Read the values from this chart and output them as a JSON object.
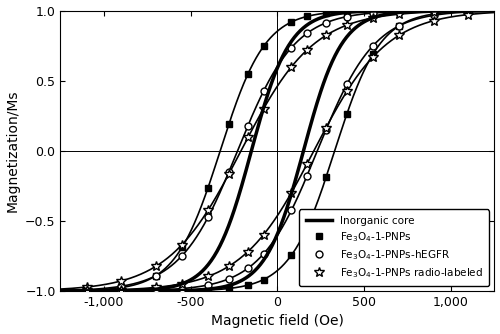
{
  "title": "",
  "xlabel": "Magnetic field (Oe)",
  "ylabel": "Magnetization/Ms",
  "xlim": [
    -1250,
    1250
  ],
  "ylim": [
    -1.0,
    1.0
  ],
  "xticks": [
    -1000,
    -500,
    0,
    500,
    1000
  ],
  "yticks": [
    -1.0,
    -0.5,
    0.0,
    0.5,
    1.0
  ],
  "legend_labels": [
    "Inorganic core",
    "Fe$_3$O$_4$-1-PNPs",
    "Fe$_3$O$_4$-1-PNPs-hEGFR",
    "Fe$_3$O$_4$-1-PNPs radio-labeled"
  ],
  "curves": {
    "inorganic_core": {
      "linewidth": 2.5,
      "Hc": 150,
      "slope": 220
    },
    "fe3o4_pnps": {
      "linewidth": 1.2,
      "Hc": 330,
      "slope": 260,
      "marker": "s",
      "ms": 5,
      "mfc": "black"
    },
    "fe3o4_pnps_hegfr": {
      "linewidth": 1.2,
      "Hc": 230,
      "slope": 330,
      "marker": "o",
      "ms": 5,
      "mfc": "white"
    },
    "fe3o4_pnps_radiolabeled": {
      "linewidth": 1.2,
      "Hc": 210,
      "slope": 420,
      "marker": "*",
      "ms": 7,
      "mfc": "white"
    }
  },
  "marker_H": [
    -1100,
    -900,
    -700,
    -550,
    -400,
    -280,
    -170,
    -80,
    80,
    170,
    280,
    400,
    550,
    700,
    900,
    1100
  ]
}
